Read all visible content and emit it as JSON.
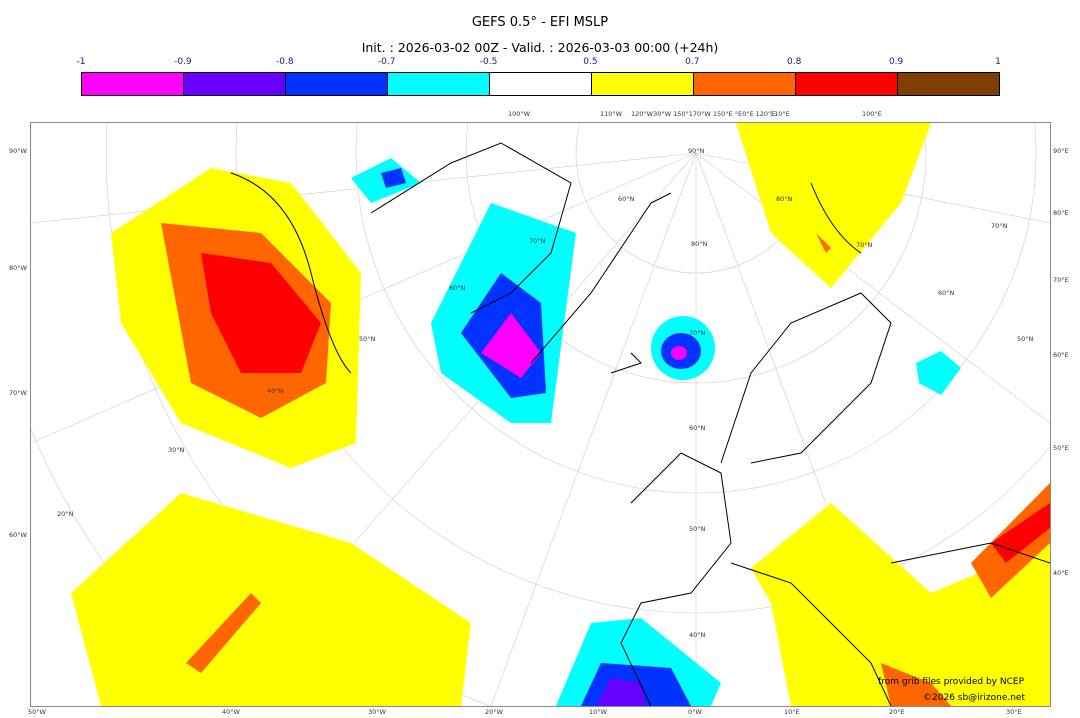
{
  "title": "GEFS 0.5° - EFI MSLP",
  "subtitle": "Init. : 2026-03-02 00Z - Valid. : 2026-03-03 00:00 (+24h)",
  "colorbar": {
    "ticks": [
      "-1",
      "-0.9",
      "-0.8",
      "-0.7",
      "-0.5",
      "0.5",
      "0.7",
      "0.8",
      "0.9",
      "1"
    ],
    "colors": [
      "#ff00ff",
      "#6600ff",
      "#0033ff",
      "#00ffff",
      "#ffffff",
      "#ffff00",
      "#ff6600",
      "#ff0000",
      "#7f3f00"
    ]
  },
  "axis": {
    "top": [
      "100°W",
      "110°W",
      "120°W30°W 150°170°W 150°E °E0°E 120°E",
      "110°E",
      "100°E"
    ],
    "left": [
      "90°W",
      "80°W",
      "70°W",
      "60°W"
    ],
    "right": [
      "90°E",
      "80°E",
      "70°E",
      "60°E",
      "50°E",
      "40°E"
    ],
    "bottom": [
      "50°W",
      "40°W",
      "30°W",
      "20°W",
      "10°W",
      "0°W",
      "10°E",
      "20°E",
      "30°E"
    ],
    "inner": [
      "90°N",
      "80°N",
      "70°N",
      "60°N",
      "50°N",
      "40°N",
      "30°N",
      "20°N",
      "70°N",
      "60°N",
      "50°N",
      "40°N",
      "70°N",
      "60°N",
      "80°N",
      "70°N",
      "60°N",
      "50°N"
    ]
  },
  "credits": {
    "line1": "from grib files provided by NCEP",
    "line2": "©2026 sb@irizone.net"
  }
}
